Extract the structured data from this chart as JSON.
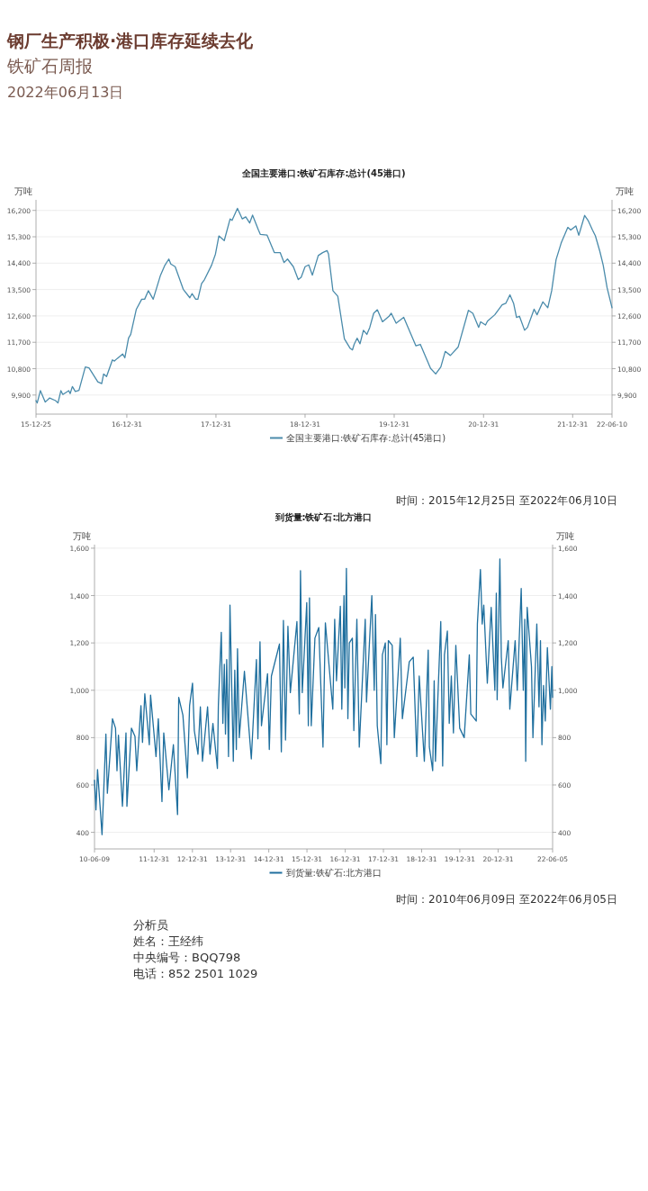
{
  "chart_data": [
    {
      "type": "other",
      "title": "钢厂生产积极·港口库存延续去化",
      "subtitle": "铁矿石周报",
      "annotations": [
        "2022年06月13日"
      ]
    },
    {
      "type": "line",
      "title": "全国主要港口:铁矿石库存:总计(45港口)",
      "ylabel": "万吨",
      "y2label": "万吨",
      "grid": "y",
      "legend": "bottom",
      "xlim": [
        "2015-12-25",
        "2022-06-10"
      ],
      "xticks": [
        {
          "value": "2015-12-25",
          "label": "15-12-25"
        },
        {
          "value": "2016-12-31",
          "label": "16-12-31"
        },
        {
          "value": "2017-12-31",
          "label": "17-12-31"
        },
        {
          "value": "2018-12-31",
          "label": "18-12-31"
        },
        {
          "value": "2019-12-31",
          "label": "19-12-31"
        },
        {
          "value": "2020-12-31",
          "label": "20-12-31"
        },
        {
          "value": "2021-12-31",
          "label": "21-12-31"
        },
        {
          "value": "2022-06-10",
          "label": "22-06-10"
        }
      ],
      "ylim": [
        9250,
        16560
      ],
      "yticks": [
        {
          "value": 9900,
          "label": "9,900"
        },
        {
          "value": 10800,
          "label": "10,800"
        },
        {
          "value": 11700,
          "label": "11,700"
        },
        {
          "value": 12600,
          "label": "12,600"
        },
        {
          "value": 13500,
          "label": "13,500"
        },
        {
          "value": 14400,
          "label": "14,400"
        },
        {
          "value": 15300,
          "label": "15,300"
        },
        {
          "value": 16200,
          "label": "16,200"
        }
      ],
      "y2lim": [
        9250,
        16560
      ],
      "y2ticks": [
        {
          "value": 9900,
          "label": "9,900"
        },
        {
          "value": 10800,
          "label": "10,800"
        },
        {
          "value": 11700,
          "label": "11,700"
        },
        {
          "value": 12600,
          "label": "12,600"
        },
        {
          "value": 13500,
          "label": "13,500"
        },
        {
          "value": 14400,
          "label": "14,400"
        },
        {
          "value": 15300,
          "label": "15,300"
        },
        {
          "value": 16200,
          "label": "16,200"
        }
      ],
      "x": [
        "2015-12-25",
        "2015-12-30",
        "2016-01-12",
        "2016-02-01",
        "2016-02-19",
        "2016-03-14",
        "2016-03-24",
        "2016-04-05",
        "2016-04-13",
        "2016-05-07",
        "2016-05-13",
        "2016-05-22",
        "2016-06-03",
        "2016-06-18",
        "2016-07-14",
        "2016-07-29",
        "2016-09-03",
        "2016-09-19",
        "2016-09-27",
        "2016-10-09",
        "2016-11-02",
        "2016-11-10",
        "2016-11-22",
        "2016-12-14",
        "2016-12-23",
        "2017-01-07",
        "2017-01-16",
        "2017-02-08",
        "2017-03-02",
        "2017-03-14",
        "2017-03-29",
        "2017-04-18",
        "2017-05-18",
        "2017-06-05",
        "2017-06-21",
        "2017-06-29",
        "2017-07-17",
        "2017-08-19",
        "2017-09-15",
        "2017-09-24",
        "2017-10-09",
        "2017-10-18",
        "2017-11-02",
        "2017-11-14",
        "2017-12-13",
        "2017-12-29",
        "2018-01-12",
        "2018-02-03",
        "2018-02-27",
        "2018-03-07",
        "2018-03-29",
        "2018-04-18",
        "2018-05-02",
        "2018-05-18",
        "2018-05-30",
        "2018-06-23",
        "2018-07-01",
        "2018-07-28",
        "2018-08-27",
        "2018-09-20",
        "2018-10-06",
        "2018-10-20",
        "2018-11-13",
        "2018-12-03",
        "2018-12-15",
        "2018-12-31",
        "2019-01-15",
        "2019-01-30",
        "2019-02-23",
        "2019-03-13",
        "2019-03-31",
        "2019-04-06",
        "2019-04-24",
        "2019-05-14",
        "2019-06-10",
        "2019-07-04",
        "2019-07-13",
        "2019-07-20",
        "2019-08-01",
        "2019-08-13",
        "2019-08-27",
        "2019-09-10",
        "2019-09-22",
        "2019-10-08",
        "2019-10-23",
        "2019-11-13",
        "2019-12-10",
        "2019-12-19",
        "2020-01-08",
        "2020-02-08",
        "2020-03-29",
        "2020-04-16",
        "2020-05-28",
        "2020-06-18",
        "2020-07-09",
        "2020-07-27",
        "2020-08-17",
        "2020-09-18",
        "2020-10-30",
        "2020-11-17",
        "2020-12-11",
        "2020-12-19",
        "2021-01-08",
        "2021-01-16",
        "2021-02-15",
        "2021-03-17",
        "2021-04-01",
        "2021-04-18",
        "2021-05-03",
        "2021-05-15",
        "2021-05-27",
        "2021-06-17",
        "2021-06-29",
        "2021-07-26",
        "2021-08-07",
        "2021-08-31",
        "2021-09-20",
        "2021-10-06",
        "2021-10-24",
        "2021-11-14",
        "2021-12-11",
        "2021-12-23",
        "2022-01-13",
        "2022-01-25",
        "2022-02-18",
        "2022-03-04",
        "2022-03-22",
        "2022-04-03",
        "2022-04-21",
        "2022-05-05",
        "2022-05-21",
        "2022-06-10"
      ],
      "series": [
        {
          "name": "全国主要港口:铁矿石库存:总计(45港口)",
          "color": "#4a8bab",
          "values": [
            9710,
            9630,
            10050,
            9660,
            9800,
            9710,
            9630,
            10050,
            9920,
            10050,
            9950,
            10190,
            10020,
            10060,
            10860,
            10830,
            10350,
            10290,
            10620,
            10530,
            11100,
            11060,
            11150,
            11300,
            11170,
            11840,
            11970,
            12830,
            13170,
            13170,
            13460,
            13170,
            13990,
            14330,
            14540,
            14370,
            14280,
            13510,
            13220,
            13360,
            13170,
            13170,
            13700,
            13840,
            14330,
            14710,
            15330,
            15170,
            15910,
            15860,
            16270,
            15910,
            15980,
            15770,
            16040,
            15530,
            15380,
            15360,
            14760,
            14760,
            14420,
            14540,
            14280,
            13840,
            13920,
            14280,
            14340,
            13990,
            14660,
            14760,
            14830,
            14710,
            13460,
            13270,
            11820,
            11490,
            11440,
            11630,
            11840,
            11650,
            12110,
            11970,
            12210,
            12690,
            12810,
            12400,
            12590,
            12690,
            12350,
            12550,
            11580,
            11630,
            10810,
            10620,
            10860,
            11390,
            11250,
            11540,
            12790,
            12690,
            12210,
            12400,
            12290,
            12420,
            12640,
            12980,
            13030,
            13320,
            13030,
            12550,
            12590,
            12110,
            12210,
            12830,
            12640,
            13080,
            12880,
            13460,
            14520,
            15090,
            15620,
            15530,
            15670,
            15350,
            16030,
            15860,
            15530,
            15330,
            14810,
            14330,
            13560,
            12880
          ]
        }
      ],
      "annotations": [
        "时间：2015年12月25日 至2022年06月10日"
      ]
    },
    {
      "type": "line",
      "title": "到货量:铁矿石:北方港口",
      "ylabel": "万吨",
      "y2label": "万吨",
      "grid": "y",
      "legend": "bottom",
      "xlim": [
        "2010-06-09",
        "2022-06-05"
      ],
      "xticks": [
        {
          "value": "2010-06-09",
          "label": "10-06-09"
        },
        {
          "value": "2011-12-31",
          "label": "11-12-31"
        },
        {
          "value": "2012-12-31",
          "label": "12-12-31"
        },
        {
          "value": "2013-12-31",
          "label": "13-12-31"
        },
        {
          "value": "2014-12-31",
          "label": "14-12-31"
        },
        {
          "value": "2015-12-31",
          "label": "15-12-31"
        },
        {
          "value": "2016-12-31",
          "label": "16-12-31"
        },
        {
          "value": "2017-12-31",
          "label": "17-12-31"
        },
        {
          "value": "2018-12-31",
          "label": "18-12-31"
        },
        {
          "value": "2019-12-31",
          "label": "19-12-31"
        },
        {
          "value": "2020-12-31",
          "label": "20-12-31"
        },
        {
          "value": "2022-06-05",
          "label": "22-06-05"
        }
      ],
      "ylim": [
        330,
        1615
      ],
      "yticks": [
        {
          "value": 400,
          "label": "400"
        },
        {
          "value": 600,
          "label": "600"
        },
        {
          "value": 800,
          "label": "800"
        },
        {
          "value": 1000,
          "label": "1,000"
        },
        {
          "value": 1200,
          "label": "1,200"
        },
        {
          "value": 1400,
          "label": "1,400"
        },
        {
          "value": 1600,
          "label": "1,600"
        }
      ],
      "y2lim": [
        330,
        1615
      ],
      "y2ticks": [
        {
          "value": 400,
          "label": "400"
        },
        {
          "value": 600,
          "label": "600"
        },
        {
          "value": 800,
          "label": "800"
        },
        {
          "value": 1000,
          "label": "1,000"
        },
        {
          "value": 1200,
          "label": "1,200"
        },
        {
          "value": 1400,
          "label": "1,400"
        },
        {
          "value": 1600,
          "label": "1,600"
        }
      ],
      "x": [
        "2010-06-09",
        "2010-06-23",
        "2010-07-08",
        "2010-08-20",
        "2010-09-26",
        "2010-10-10",
        "2010-11-28",
        "2010-12-27",
        "2011-01-10",
        "2011-01-24",
        "2011-03-03",
        "2011-04-06",
        "2011-04-15",
        "2011-05-28",
        "2011-07-01",
        "2011-07-18",
        "2011-08-27",
        "2011-09-11",
        "2011-10-03",
        "2011-11-15",
        "2011-11-27",
        "2012-01-18",
        "2012-02-09",
        "2012-03-15",
        "2012-04-01",
        "2012-05-20",
        "2012-07-02",
        "2012-08-11",
        "2012-08-22",
        "2012-10-01",
        "2012-11-13",
        "2012-12-04",
        "2013-01-01",
        "2013-01-18",
        "2013-02-22",
        "2013-03-17",
        "2013-04-06",
        "2013-05-25",
        "2013-06-17",
        "2013-07-15",
        "2013-08-27",
        "2013-09-05",
        "2013-10-03",
        "2013-10-18",
        "2013-11-01",
        "2013-11-12",
        "2013-11-24",
        "2013-12-11",
        "2013-12-25",
        "2014-01-26",
        "2014-02-09",
        "2014-02-24",
        "2014-03-07",
        "2014-03-24",
        "2014-05-12",
        "2014-07-17",
        "2014-09-04",
        "2014-09-18",
        "2014-10-08",
        "2014-10-22",
        "2014-12-19",
        "2015-01-05",
        "2015-01-25",
        "2015-04-12",
        "2015-04-30",
        "2015-05-20",
        "2015-06-09",
        "2015-07-02",
        "2015-07-25",
        "2015-09-26",
        "2015-10-19",
        "2015-10-30",
        "2015-11-16",
        "2015-12-29",
        "2016-01-13",
        "2016-01-24",
        "2016-02-10",
        "2016-03-16",
        "2016-04-22",
        "2016-06-01",
        "2016-06-24",
        "2016-09-03",
        "2016-09-21",
        "2016-10-08",
        "2016-11-14",
        "2016-11-28",
        "2016-12-19",
        "2016-12-27",
        "2017-01-11",
        "2017-01-25",
        "2017-02-08",
        "2017-03-09",
        "2017-03-23",
        "2017-04-21",
        "2017-05-14",
        "2017-07-10",
        "2017-07-22",
        "2017-09-11",
        "2017-10-04",
        "2017-10-16",
        "2017-11-02",
        "2017-12-06",
        "2017-12-21",
        "2018-01-18",
        "2018-02-02",
        "2018-02-16",
        "2018-03-25",
        "2018-04-14",
        "2018-06-10",
        "2018-06-30",
        "2018-09-04",
        "2018-10-12",
        "2018-11-15",
        "2018-12-08",
        "2019-01-26",
        "2019-03-04",
        "2019-03-15",
        "2019-04-16",
        "2019-04-30",
        "2019-05-12",
        "2019-07-02",
        "2019-07-20",
        "2019-08-06",
        "2019-09-03",
        "2019-09-21",
        "2019-10-11",
        "2019-10-31",
        "2019-11-23",
        "2019-12-30",
        "2020-02-11",
        "2020-03-31",
        "2020-04-14",
        "2020-06-05",
        "2020-06-16",
        "2020-07-15",
        "2020-08-01",
        "2020-08-16",
        "2020-09-19",
        "2020-10-26",
        "2020-11-30",
        "2020-12-14",
        "2020-12-22",
        "2021-01-17",
        "2021-01-31",
        "2021-02-15",
        "2021-04-07",
        "2021-04-22",
        "2021-06-12",
        "2021-07-02",
        "2021-08-09",
        "2021-08-29",
        "2021-09-12",
        "2021-09-21",
        "2021-10-05",
        "2021-11-15",
        "2021-11-29",
        "2022-01-05",
        "2022-01-26",
        "2022-02-09",
        "2022-02-23",
        "2022-03-10",
        "2022-03-27",
        "2022-04-16",
        "2022-05-15",
        "2022-05-29",
        "2022-06-05"
      ],
      "series": [
        {
          "name": "到货量:铁矿石:北方港口",
          "color": "#1f6f9e",
          "values": [
            620,
            495,
            665,
            390,
            815,
            565,
            880,
            840,
            660,
            810,
            510,
            820,
            510,
            840,
            805,
            660,
            935,
            780,
            985,
            770,
            980,
            720,
            880,
            530,
            820,
            580,
            770,
            475,
            970,
            895,
            630,
            935,
            1030,
            830,
            730,
            930,
            700,
            930,
            730,
            860,
            670,
            935,
            1245,
            860,
            1110,
            815,
            1130,
            720,
            1360,
            700,
            1085,
            750,
            1175,
            800,
            1080,
            710,
            1130,
            795,
            1205,
            850,
            1070,
            750,
            1060,
            1195,
            740,
            1295,
            790,
            1270,
            990,
            1290,
            900,
            1505,
            990,
            1370,
            850,
            1390,
            850,
            1220,
            1265,
            760,
            1285,
            920,
            1300,
            1040,
            1355,
            920,
            1400,
            1010,
            1515,
            880,
            1200,
            1220,
            830,
            1300,
            760,
            1300,
            950,
            1400,
            1000,
            1320,
            850,
            690,
            1150,
            1200,
            770,
            1210,
            1190,
            800,
            1220,
            880,
            1120,
            1140,
            720,
            1060,
            700,
            1170,
            760,
            660,
            1040,
            700,
            1290,
            680,
            1150,
            1250,
            860,
            1060,
            820,
            1190,
            840,
            800,
            1150,
            900,
            870,
            1280,
            1510,
            1280,
            1360,
            1030,
            1350,
            1000,
            1410,
            960,
            1555,
            1140,
            1010,
            1210,
            920,
            1210,
            1000,
            1430,
            1000,
            1300,
            700,
            1350,
            1100,
            800,
            1280,
            930,
            1210,
            770,
            1020,
            870,
            1180,
            920,
            1100,
            970
          ]
        }
      ],
      "annotations": [
        "时间：2010年06月09日 至2022年06月05日"
      ]
    },
    {
      "type": "other",
      "title": "分析员",
      "annotations": [
        "姓名：王经纬",
        "中央编号：BQQ798",
        "电话：852 2501 1029"
      ]
    }
  ]
}
